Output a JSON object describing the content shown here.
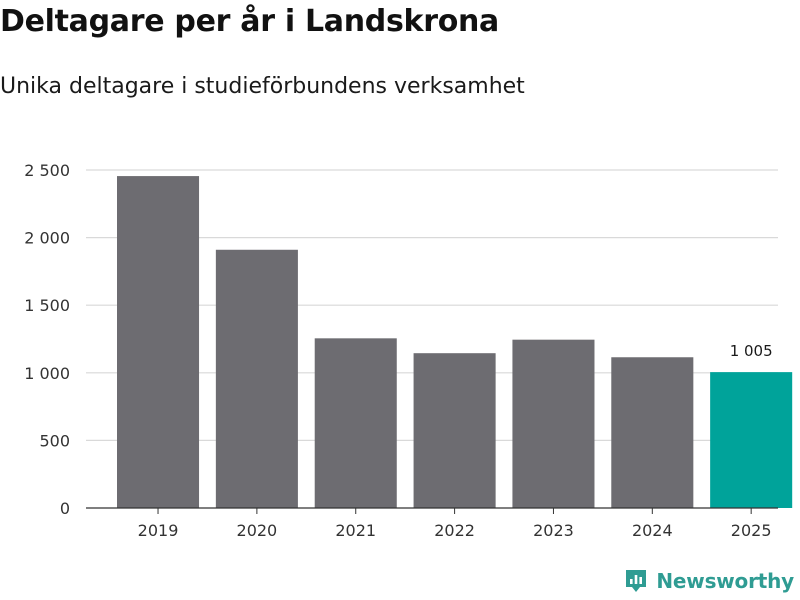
{
  "title": "Deltagare per år i Landskrona",
  "subtitle": "Unika deltagare i studieförbundens verksamhet",
  "brand": {
    "name": "Newsworthy",
    "icon": "newsworthy-logo-icon",
    "color": "#2f9c93"
  },
  "chart_data": {
    "type": "bar",
    "title": "Deltagare per år i Landskrona",
    "subtitle": "Unika deltagare i studieförbundens verksamhet",
    "xlabel": "",
    "ylabel": "",
    "categories": [
      "2019",
      "2020",
      "2021",
      "2022",
      "2023",
      "2024",
      "2025"
    ],
    "values": [
      2455,
      1910,
      1255,
      1145,
      1245,
      1115,
      1005
    ],
    "ylim": [
      0,
      2500
    ],
    "yticks": [
      0,
      500,
      1000,
      1500,
      2000,
      2500
    ],
    "ytick_labels": [
      "0",
      "500",
      "1 000",
      "1 500",
      "2 000",
      "2 500"
    ],
    "grid": true,
    "highlight_index": 6,
    "data_labels": [
      {
        "index": 6,
        "text": "1 005"
      }
    ],
    "colors": {
      "bar": "#6d6c71",
      "highlight": "#00a39a",
      "grid": "#d9d9d9",
      "axis": "#333333"
    }
  }
}
